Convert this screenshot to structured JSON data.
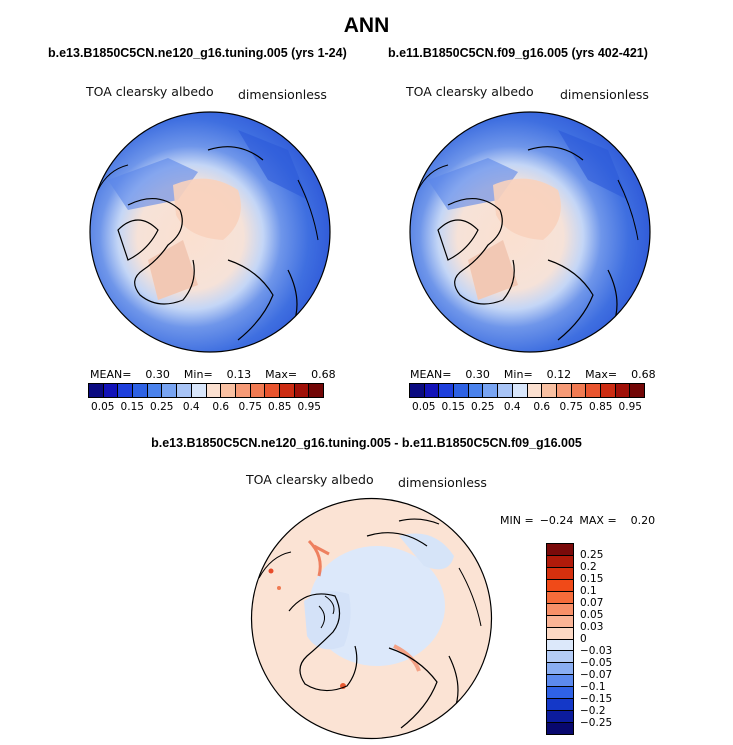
{
  "title": "ANN",
  "panels": [
    {
      "case": "b.e13.B1850C5CN.ne120_g16.tuning.005 (yrs 1-24)",
      "variable": "TOA clearsky albedo",
      "units": "dimensionless",
      "mean_label": "MEAN=",
      "mean": "0.30",
      "min_label": "Min=",
      "min": "0.13",
      "max_label": "Max=",
      "max": "0.68"
    },
    {
      "case": "b.e11.B1850C5CN.f09_g16.005 (yrs 402-421)",
      "variable": "TOA clearsky albedo",
      "units": "dimensionless",
      "mean_label": "MEAN=",
      "mean": "0.30",
      "min_label": "Min=",
      "min": "0.12",
      "max_label": "Max=",
      "max": "0.68"
    }
  ],
  "colorbar": {
    "labels": [
      "0.05",
      "0.15",
      "0.25",
      "0.4",
      "0.6",
      "0.75",
      "0.85",
      "0.95"
    ],
    "colors": [
      "#0a0a80",
      "#1212b8",
      "#1e3fdc",
      "#2e62e4",
      "#4a82ec",
      "#78a4f2",
      "#a8c4f6",
      "#d8e6fb",
      "#fbe0d0",
      "#f8c0a2",
      "#f69a76",
      "#f07a52",
      "#e8542e",
      "#cc2c12",
      "#a01008",
      "#720606"
    ]
  },
  "difference": {
    "title": "b.e13.B1850C5CN.ne120_g16.tuning.005 - b.e11.B1850C5CN.f09_g16.005",
    "variable": "TOA clearsky albedo",
    "units": "dimensionless",
    "min_label": "MIN =",
    "min": "−0.24",
    "max_label": "MAX =",
    "max": "0.20",
    "colorbar_labels": [
      "0.25",
      "0.2",
      "0.15",
      "0.1",
      "0.07",
      "0.05",
      "0.03",
      "0",
      "−0.03",
      "−0.05",
      "−0.07",
      "−0.1",
      "−0.15",
      "−0.2",
      "−0.25"
    ],
    "colorbar_colors": [
      "#7a0a0a",
      "#b01a0a",
      "#d6300e",
      "#f04a18",
      "#f66c3a",
      "#f89068",
      "#fab496",
      "#fcd8c4",
      "#dce8fa",
      "#b4ccf6",
      "#8aaef2",
      "#5c8aee",
      "#2f62e6",
      "#1438c8",
      "#0c1c9c",
      "#08086e"
    ]
  }
}
